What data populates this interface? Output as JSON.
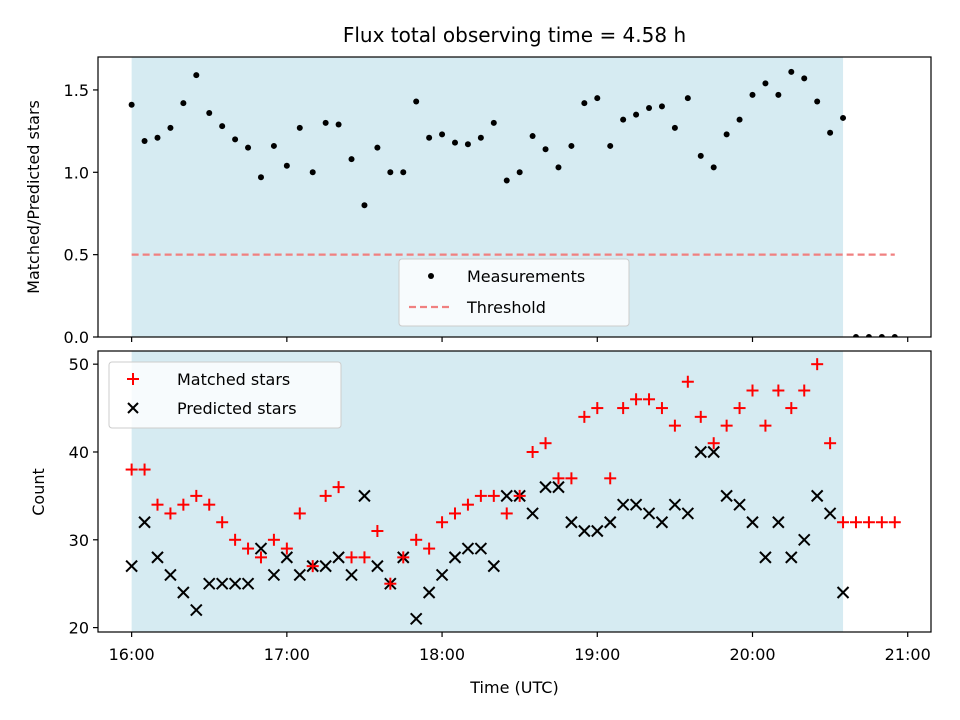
{
  "chart_data": [
    {
      "type": "scatter",
      "title": "Flux total observing time = 4.58 h",
      "xlabel": "",
      "ylabel": "Matched/Predicted stars",
      "xlim": [
        "15:47",
        "21:09"
      ],
      "ylim": [
        0,
        1.7
      ],
      "yticks": [
        "0.0",
        "0.5",
        "1.0",
        "1.5"
      ],
      "xticks": [
        "16:00",
        "17:00",
        "18:00",
        "19:00",
        "20:00",
        "21:00"
      ],
      "shaded_span": [
        "16:00",
        "20:35"
      ],
      "shade_color": "#add8e6",
      "legend_position": "lower-center",
      "series": [
        {
          "name": "Measurements",
          "marker": "dot",
          "color": "#000000",
          "x": [
            "16:00",
            "16:05",
            "16:10",
            "16:15",
            "16:20",
            "16:25",
            "16:30",
            "16:35",
            "16:40",
            "16:45",
            "16:50",
            "16:55",
            "17:00",
            "17:05",
            "17:10",
            "17:15",
            "17:20",
            "17:25",
            "17:30",
            "17:35",
            "17:40",
            "17:45",
            "17:50",
            "17:55",
            "18:00",
            "18:05",
            "18:10",
            "18:15",
            "18:20",
            "18:25",
            "18:30",
            "18:35",
            "18:40",
            "18:45",
            "18:50",
            "18:55",
            "19:00",
            "19:05",
            "19:10",
            "19:15",
            "19:20",
            "19:25",
            "19:30",
            "19:35",
            "19:40",
            "19:45",
            "19:50",
            "19:55",
            "20:00",
            "20:05",
            "20:10",
            "20:15",
            "20:20",
            "20:25",
            "20:30",
            "20:35",
            "20:40",
            "20:45",
            "20:50",
            "20:55"
          ],
          "y": [
            1.41,
            1.19,
            1.21,
            1.27,
            1.42,
            1.59,
            1.36,
            1.28,
            1.2,
            1.15,
            0.97,
            1.16,
            1.04,
            1.27,
            1.0,
            1.3,
            1.29,
            1.08,
            0.8,
            1.15,
            1.0,
            1.0,
            1.43,
            1.21,
            1.23,
            1.18,
            1.17,
            1.21,
            1.3,
            0.95,
            1.0,
            1.22,
            1.14,
            1.03,
            1.16,
            1.42,
            1.45,
            1.16,
            1.32,
            1.35,
            1.39,
            1.4,
            1.27,
            1.45,
            1.1,
            1.03,
            1.23,
            1.32,
            1.47,
            1.54,
            1.47,
            1.61,
            1.57,
            1.43,
            1.24,
            1.33,
            0.0,
            0.0,
            0.0,
            0.0
          ]
        },
        {
          "name": "Threshold",
          "style": "dashed",
          "color": "#f08080",
          "x": [
            "16:00",
            "20:55"
          ],
          "y": [
            0.5,
            0.5
          ]
        }
      ]
    },
    {
      "type": "scatter",
      "title": "",
      "xlabel": "Time (UTC)",
      "ylabel": "Count",
      "xlim": [
        "15:47",
        "21:09"
      ],
      "ylim": [
        19.5,
        51.5
      ],
      "yticks": [
        "20",
        "30",
        "40",
        "50"
      ],
      "xticks": [
        "16:00",
        "17:00",
        "18:00",
        "19:00",
        "20:00",
        "21:00"
      ],
      "shaded_span": [
        "16:00",
        "20:35"
      ],
      "shade_color": "#add8e6",
      "legend_position": "upper-left",
      "series": [
        {
          "name": "Matched stars",
          "marker": "plus",
          "color": "#ff0000",
          "x": [
            "16:00",
            "16:05",
            "16:10",
            "16:15",
            "16:20",
            "16:25",
            "16:30",
            "16:35",
            "16:40",
            "16:45",
            "16:50",
            "16:55",
            "17:00",
            "17:05",
            "17:10",
            "17:15",
            "17:20",
            "17:25",
            "17:30",
            "17:35",
            "17:40",
            "17:45",
            "17:50",
            "17:55",
            "18:00",
            "18:05",
            "18:10",
            "18:15",
            "18:20",
            "18:25",
            "18:30",
            "18:35",
            "18:40",
            "18:45",
            "18:50",
            "18:55",
            "19:00",
            "19:05",
            "19:10",
            "19:15",
            "19:20",
            "19:25",
            "19:30",
            "19:35",
            "19:40",
            "19:45",
            "19:50",
            "19:55",
            "20:00",
            "20:05",
            "20:10",
            "20:15",
            "20:20",
            "20:25",
            "20:30",
            "20:35",
            "20:40",
            "20:45",
            "20:50",
            "20:55"
          ],
          "y": [
            38,
            38,
            34,
            33,
            34,
            35,
            34,
            32,
            30,
            29,
            28,
            30,
            29,
            33,
            27,
            35,
            36,
            28,
            28,
            31,
            25,
            28,
            30,
            29,
            32,
            33,
            34,
            35,
            35,
            33,
            35,
            40,
            41,
            37,
            37,
            44,
            45,
            37,
            45,
            46,
            46,
            45,
            43,
            48,
            44,
            41,
            43,
            45,
            47,
            43,
            47,
            45,
            47,
            50,
            41,
            32,
            32,
            32,
            32,
            32
          ]
        },
        {
          "name": "Predicted stars",
          "marker": "x",
          "color": "#000000",
          "x": [
            "16:00",
            "16:05",
            "16:10",
            "16:15",
            "16:20",
            "16:25",
            "16:30",
            "16:35",
            "16:40",
            "16:45",
            "16:50",
            "16:55",
            "17:00",
            "17:05",
            "17:10",
            "17:15",
            "17:20",
            "17:25",
            "17:30",
            "17:35",
            "17:40",
            "17:45",
            "17:50",
            "17:55",
            "18:00",
            "18:05",
            "18:10",
            "18:15",
            "18:20",
            "18:25",
            "18:30",
            "18:35",
            "18:40",
            "18:45",
            "18:50",
            "18:55",
            "19:00",
            "19:05",
            "19:10",
            "19:15",
            "19:20",
            "19:25",
            "19:30",
            "19:35",
            "19:40",
            "19:45",
            "19:50",
            "19:55",
            "20:00",
            "20:05",
            "20:10",
            "20:15",
            "20:20",
            "20:25",
            "20:30",
            "20:35"
          ],
          "y": [
            27,
            32,
            28,
            26,
            24,
            22,
            25,
            25,
            25,
            25,
            29,
            26,
            28,
            26,
            27,
            27,
            28,
            26,
            35,
            27,
            25,
            28,
            21,
            24,
            26,
            28,
            29,
            29,
            27,
            35,
            35,
            33,
            36,
            36,
            32,
            31,
            31,
            32,
            34,
            34,
            33,
            32,
            34,
            33,
            40,
            40,
            35,
            34,
            32,
            28,
            32,
            28,
            30,
            35,
            33,
            24
          ]
        }
      ]
    }
  ]
}
